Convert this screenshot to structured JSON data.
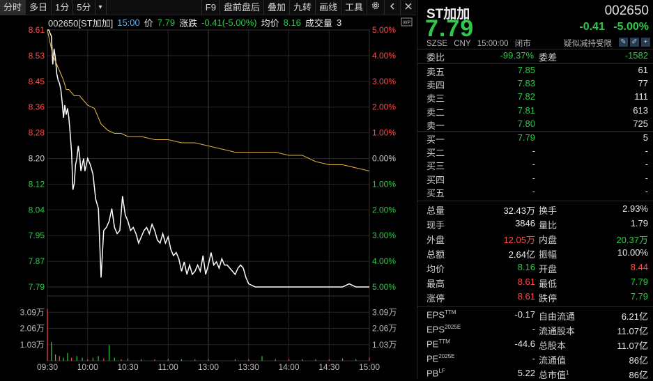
{
  "toolbar": {
    "tabs": [
      "分时",
      "多日",
      "1分",
      "5分"
    ],
    "dropdown": "▾",
    "right_items": [
      "F9",
      "盘前盘后",
      "叠加",
      "九转",
      "画线",
      "工具"
    ]
  },
  "infobar": {
    "code_name": "002650[ST加加]",
    "time": "15:00",
    "price_label": "价",
    "price": "7.79",
    "change_label": "涨跌",
    "change": "-0.41(-5.00%)",
    "avg_label": "均价",
    "avg": "8.16",
    "volume_label": "成交量",
    "volume": "3"
  },
  "chart_data": {
    "type": "line",
    "title": "",
    "prev_close": 8.2,
    "y_ticks_price": [
      "8.61",
      "8.53",
      "8.45",
      "8.36",
      "8.28",
      "8.20",
      "8.12",
      "8.04",
      "7.95",
      "7.87",
      "7.79"
    ],
    "y_ticks_pct": [
      "5.00%",
      "4.00%",
      "3.00%",
      "2.00%",
      "1.00%",
      "0.00%",
      "1.00%",
      "2.00%",
      "3.00%",
      "4.00%",
      "5.00%"
    ],
    "vol_ticks": [
      "3.09万",
      "2.06万",
      "1.03万"
    ],
    "x_ticks": [
      "09:30",
      "10:00",
      "10:30",
      "11:00",
      "13:00",
      "13:30",
      "14:00",
      "14:30",
      "15:00"
    ],
    "ylim": [
      7.79,
      8.61
    ],
    "series": [
      {
        "color": "#ffffff",
        "x": [
          0,
          1,
          2,
          3,
          4,
          5,
          6,
          7,
          8,
          9,
          10,
          11,
          12,
          13,
          14,
          15,
          16,
          17,
          18,
          19,
          20,
          21,
          22,
          23,
          24,
          25,
          26,
          27,
          28,
          30,
          32,
          34,
          36,
          38,
          40,
          42,
          44,
          46,
          48,
          50,
          52,
          54,
          56,
          58,
          60,
          62,
          64,
          66,
          68,
          70,
          72,
          74,
          76,
          78,
          80,
          82,
          84,
          86,
          88,
          90,
          92,
          94,
          96,
          98,
          100,
          102,
          104,
          106,
          108,
          110,
          112,
          114,
          116,
          118,
          120,
          122,
          124,
          126,
          128,
          130,
          132,
          134,
          136,
          138,
          140,
          142,
          144,
          146,
          148,
          150,
          155,
          160,
          165,
          170,
          175,
          180,
          185,
          190,
          195,
          200,
          205,
          210,
          215,
          220,
          225,
          230,
          235,
          240
        ],
        "y": [
          8.61,
          8.61,
          8.6,
          8.59,
          8.5,
          8.55,
          8.52,
          8.47,
          8.45,
          8.44,
          8.42,
          8.38,
          8.33,
          8.37,
          8.34,
          8.36,
          8.33,
          8.28,
          8.22,
          8.1,
          8.12,
          8.18,
          8.2,
          8.24,
          8.21,
          8.16,
          8.18,
          8.2,
          8.16,
          8.2,
          8.18,
          8.15,
          8.07,
          8.04,
          7.82,
          7.97,
          7.98,
          8.0,
          8.04,
          7.98,
          7.96,
          7.97,
          8.08,
          8.02,
          8.0,
          7.97,
          7.98,
          7.96,
          7.93,
          7.95,
          7.97,
          7.98,
          7.96,
          7.99,
          7.97,
          7.94,
          7.93,
          7.96,
          7.93,
          7.95,
          7.91,
          7.89,
          7.9,
          7.88,
          7.84,
          7.87,
          7.83,
          7.86,
          7.83,
          7.84,
          7.86,
          7.84,
          7.89,
          7.83,
          7.86,
          7.9,
          7.86,
          7.87,
          7.85,
          7.88,
          7.86,
          7.86,
          7.85,
          7.84,
          7.83,
          7.85,
          7.86,
          7.85,
          7.82,
          7.8,
          7.79,
          7.79,
          7.79,
          7.79,
          7.79,
          7.79,
          7.79,
          7.79,
          7.79,
          7.79,
          7.79,
          7.79,
          7.79,
          7.79,
          7.8,
          7.79,
          7.79,
          7.79
        ]
      },
      {
        "color": "#e0b03c",
        "x": [
          0,
          2,
          4,
          6,
          8,
          10,
          12,
          14,
          16,
          18,
          20,
          22,
          24,
          26,
          28,
          30,
          35,
          40,
          45,
          50,
          55,
          60,
          70,
          80,
          90,
          100,
          110,
          120,
          130,
          140,
          150,
          160,
          170,
          180,
          190,
          200,
          210,
          220,
          230,
          240
        ],
        "y": [
          8.61,
          8.57,
          8.53,
          8.51,
          8.49,
          8.47,
          8.45,
          8.42,
          8.42,
          8.41,
          8.4,
          8.4,
          8.4,
          8.39,
          8.38,
          8.37,
          8.36,
          8.31,
          8.29,
          8.28,
          8.28,
          8.27,
          8.27,
          8.26,
          8.26,
          8.25,
          8.25,
          8.24,
          8.23,
          8.22,
          8.22,
          8.22,
          8.22,
          8.21,
          8.21,
          8.19,
          8.18,
          8.18,
          8.17,
          8.16
        ]
      }
    ],
    "volume": {
      "x": [
        0,
        3,
        6,
        9,
        12,
        15,
        18,
        22,
        26,
        30,
        34,
        38,
        42,
        46,
        50,
        55,
        60,
        70,
        80,
        90,
        100,
        110,
        120,
        140,
        150,
        160,
        170,
        180,
        190,
        200,
        210,
        220,
        230,
        240
      ],
      "values": [
        3.3,
        1.2,
        0.4,
        0.3,
        0.2,
        0.5,
        0.2,
        0.3,
        0.2,
        0.1,
        0.2,
        0.3,
        0.15,
        1.0,
        0.2,
        0.1,
        0.15,
        0.1,
        0.1,
        0.12,
        0.1,
        0.1,
        0.1,
        0.1,
        0.1,
        0.3,
        0.1,
        0.1,
        0.1,
        0.1,
        0.1,
        0.15,
        0.1,
        0.2
      ]
    }
  },
  "quote": {
    "name": "ST加加",
    "code": "002650",
    "price": "7.79",
    "change": "-0.41",
    "change_pct": "-5.00%",
    "exchange": "SZSE",
    "currency": "CNY",
    "time": "15:00:00",
    "status": "闭市",
    "risk": "疑似减持受限",
    "icons": [
      "pencil-icon",
      "edit-icon",
      "add-icon"
    ]
  },
  "ratio": {
    "label1": "委比",
    "value1": "-99.37%",
    "label2": "委差",
    "value2": "-1582"
  },
  "sell": [
    {
      "label": "卖五",
      "price": "7.85",
      "volume": "61"
    },
    {
      "label": "卖四",
      "price": "7.83",
      "volume": "77"
    },
    {
      "label": "卖三",
      "price": "7.82",
      "volume": "111"
    },
    {
      "label": "卖二",
      "price": "7.81",
      "volume": "613"
    },
    {
      "label": "卖一",
      "price": "7.80",
      "volume": "725"
    }
  ],
  "buy": [
    {
      "label": "买一",
      "price": "7.79",
      "volume": "5"
    },
    {
      "label": "买二",
      "price": "-",
      "volume": "-"
    },
    {
      "label": "买三",
      "price": "-",
      "volume": "-"
    },
    {
      "label": "买四",
      "price": "-",
      "volume": "-"
    },
    {
      "label": "买五",
      "price": "-",
      "volume": "-"
    }
  ],
  "stats": [
    {
      "l1": "总量",
      "v1": "32.43万",
      "c1": "white",
      "l2": "换手",
      "v2": "2.93%",
      "c2": "white"
    },
    {
      "l1": "现手",
      "v1": "3846",
      "c1": "white",
      "l2": "量比",
      "v2": "1.79",
      "c2": "white"
    },
    {
      "l1": "外盘",
      "v1": "12.05万",
      "c1": "red",
      "l2": "内盘",
      "v2": "20.37万",
      "c2": "green"
    },
    {
      "l1": "总额",
      "v1": "2.64亿",
      "c1": "white",
      "l2": "振幅",
      "v2": "10.00%",
      "c2": "white"
    },
    {
      "l1": "均价",
      "v1": "8.16",
      "c1": "green",
      "l2": "开盘",
      "v2": "8.44",
      "c2": "red"
    },
    {
      "l1": "最高",
      "v1": "8.61",
      "c1": "red",
      "l2": "最低",
      "v2": "7.79",
      "c2": "green"
    },
    {
      "l1": "涨停",
      "v1": "8.61",
      "c1": "red",
      "l2": "跌停",
      "v2": "7.79",
      "c2": "green"
    }
  ],
  "fundamentals": [
    {
      "l1": "EPS",
      "s1": "TTM",
      "v1": "-0.17",
      "l2": "自由流通",
      "s2": "",
      "v2": "6.21亿"
    },
    {
      "l1": "EPS",
      "s1": "2025E",
      "v1": "-",
      "l2": "流通股本",
      "s2": "",
      "v2": "11.07亿"
    },
    {
      "l1": "PE",
      "s1": "TTM",
      "v1": "-44.6",
      "l2": "总股本",
      "s2": "",
      "v2": "11.07亿"
    },
    {
      "l1": "PE",
      "s1": "2025E",
      "v1": "-",
      "l2": "流通值",
      "s2": "",
      "v2": "86亿"
    },
    {
      "l1": "PB",
      "s1": "LF",
      "v1": "5.22",
      "l2": "总市值",
      "s2": "1",
      "v2": "86亿"
    }
  ],
  "colors": {
    "up": "#ff4a4a",
    "down": "#2fc94a",
    "price_line": "#ffffff",
    "avg_line": "#e0b03c",
    "accent": "#5fb3e8"
  }
}
